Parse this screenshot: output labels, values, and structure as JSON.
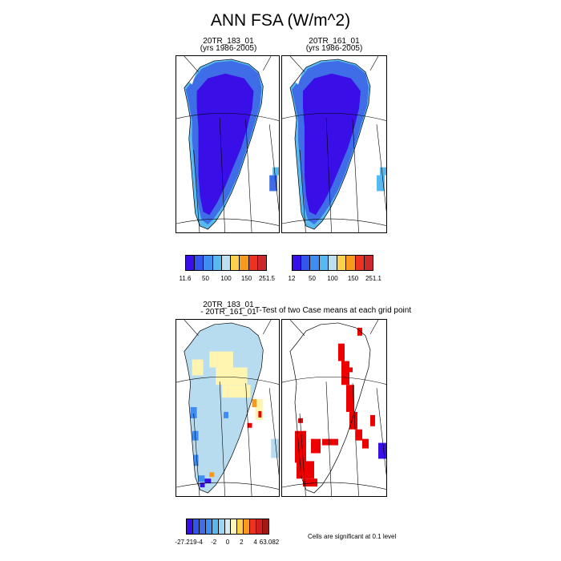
{
  "title": "ANN FSA (W/m^2)",
  "panels": {
    "case1": {
      "name": "20TR_183_01",
      "years": "(yrs 1986-2005)"
    },
    "case2": {
      "name": "20TR_161_01",
      "years": "(yrs 1986-2005)"
    },
    "diff": {
      "line1": "20TR_183_01",
      "line2": "- 20TR_161_01"
    },
    "ttest": {
      "title": "T-Test of two Case means at each grid point"
    }
  },
  "colorbars": {
    "case1": {
      "colors": [
        "#3a0ee6",
        "#3355ee",
        "#3f8df0",
        "#58b9f0",
        "#bde0ef",
        "#fcd24c",
        "#f59a1c",
        "#ee3120",
        "#cc2a2a"
      ],
      "labels": [
        "11.6",
        "50",
        "100",
        "150",
        "251.5"
      ]
    },
    "case2": {
      "colors": [
        "#3a0ee6",
        "#3355ee",
        "#3f8df0",
        "#58b9f0",
        "#bde0ef",
        "#fcd24c",
        "#f59a1c",
        "#ee3120",
        "#cc2a2a"
      ],
      "labels": [
        "12",
        "50",
        "100",
        "150",
        "251.1"
      ]
    },
    "diff": {
      "colors": [
        "#3a0ee6",
        "#3355ee",
        "#3f6de8",
        "#3f8df0",
        "#58b9f0",
        "#9ed4ef",
        "#d6ecf5",
        "#fff4b8",
        "#fcd24c",
        "#f59a1c",
        "#ee3120",
        "#d12020",
        "#a01818"
      ],
      "labels": [
        "-27.219",
        "-4",
        "-2",
        "0",
        "2",
        "4",
        "63.082"
      ]
    }
  },
  "map_colors": {
    "low": "#3a0ee6",
    "mid": "#3f6de8",
    "light": "#58b9f0",
    "diff_bg": "#b7dcf0",
    "diff_yellow": "#fff4b0",
    "diff_blue": "#3f8df0",
    "diff_orange": "#f59a1c",
    "sig": "#ee0000"
  },
  "note": "Cells are significant at 0.1 level"
}
